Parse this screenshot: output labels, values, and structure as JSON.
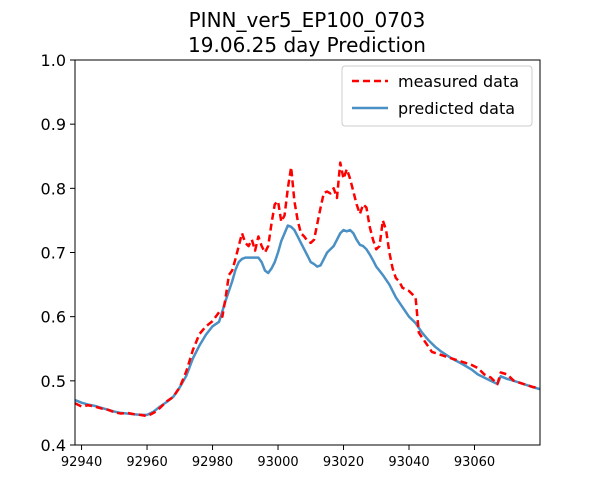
{
  "chart_data": {
    "type": "line",
    "title_line1": "PINN_ver5_EP100_0703",
    "title_line2": "19.06.25 day Prediction",
    "xlabel": "",
    "ylabel": "",
    "xlim": [
      92938,
      93080
    ],
    "ylim": [
      0.4,
      1.0
    ],
    "x_ticks": [
      92940,
      92960,
      92980,
      93000,
      93020,
      93040,
      93060
    ],
    "x_tick_labels": [
      "92940",
      "92960",
      "92980",
      "93000",
      "93020",
      "93040",
      "93060"
    ],
    "y_ticks": [
      0.4,
      0.5,
      0.6,
      0.7,
      0.8,
      0.9,
      1.0
    ],
    "y_tick_labels": [
      "0.4",
      "0.5",
      "0.6",
      "0.7",
      "0.8",
      "0.9",
      "1.0"
    ],
    "grid": false,
    "legend_position": "top-right",
    "series": [
      {
        "name": "measured data",
        "color": "#ff0000",
        "style": "dashed",
        "points": [
          [
            92938,
            0.465
          ],
          [
            92940,
            0.46
          ],
          [
            92942,
            0.462
          ],
          [
            92944,
            0.46
          ],
          [
            92946,
            0.457
          ],
          [
            92948,
            0.455
          ],
          [
            92950,
            0.451
          ],
          [
            92952,
            0.449
          ],
          [
            92954,
            0.45
          ],
          [
            92956,
            0.448
          ],
          [
            92958,
            0.447
          ],
          [
            92960,
            0.445
          ],
          [
            92962,
            0.45
          ],
          [
            92964,
            0.458
          ],
          [
            92966,
            0.468
          ],
          [
            92968,
            0.475
          ],
          [
            92970,
            0.49
          ],
          [
            92972,
            0.515
          ],
          [
            92974,
            0.548
          ],
          [
            92976,
            0.573
          ],
          [
            92978,
            0.585
          ],
          [
            92980,
            0.593
          ],
          [
            92982,
            0.607
          ],
          [
            92983,
            0.6
          ],
          [
            92984,
            0.63
          ],
          [
            92985,
            0.665
          ],
          [
            92986,
            0.672
          ],
          [
            92987,
            0.69
          ],
          [
            92988,
            0.71
          ],
          [
            92989,
            0.73
          ],
          [
            92990,
            0.715
          ],
          [
            92991,
            0.71
          ],
          [
            92992,
            0.72
          ],
          [
            92993,
            0.703
          ],
          [
            92994,
            0.725
          ],
          [
            92995,
            0.71
          ],
          [
            92996,
            0.7
          ],
          [
            92997,
            0.71
          ],
          [
            92998,
            0.745
          ],
          [
            92999,
            0.775
          ],
          [
            93000,
            0.78
          ],
          [
            93001,
            0.748
          ],
          [
            93002,
            0.758
          ],
          [
            93003,
            0.8
          ],
          [
            93004,
            0.833
          ],
          [
            93005,
            0.78
          ],
          [
            93006,
            0.75
          ],
          [
            93007,
            0.73
          ],
          [
            93008,
            0.725
          ],
          [
            93009,
            0.718
          ],
          [
            93010,
            0.715
          ],
          [
            93011,
            0.72
          ],
          [
            93012,
            0.745
          ],
          [
            93013,
            0.77
          ],
          [
            93014,
            0.793
          ],
          [
            93015,
            0.795
          ],
          [
            93016,
            0.792
          ],
          [
            93017,
            0.8
          ],
          [
            93018,
            0.785
          ],
          [
            93019,
            0.84
          ],
          [
            93020,
            0.815
          ],
          [
            93021,
            0.83
          ],
          [
            93022,
            0.815
          ],
          [
            93023,
            0.795
          ],
          [
            93024,
            0.775
          ],
          [
            93025,
            0.76
          ],
          [
            93026,
            0.775
          ],
          [
            93027,
            0.77
          ],
          [
            93028,
            0.74
          ],
          [
            93029,
            0.72
          ],
          [
            93030,
            0.705
          ],
          [
            93031,
            0.71
          ],
          [
            93032,
            0.75
          ],
          [
            93033,
            0.735
          ],
          [
            93034,
            0.7
          ],
          [
            93035,
            0.675
          ],
          [
            93036,
            0.66
          ],
          [
            93037,
            0.655
          ],
          [
            93038,
            0.645
          ],
          [
            93040,
            0.64
          ],
          [
            93042,
            0.63
          ],
          [
            93043,
            0.575
          ],
          [
            93045,
            0.56
          ],
          [
            93047,
            0.545
          ],
          [
            93050,
            0.54
          ],
          [
            93053,
            0.535
          ],
          [
            93056,
            0.53
          ],
          [
            93059,
            0.525
          ],
          [
            93061,
            0.52
          ],
          [
            93063,
            0.51
          ],
          [
            93065,
            0.505
          ],
          [
            93067,
            0.495
          ],
          [
            93068,
            0.513
          ],
          [
            93070,
            0.51
          ],
          [
            93072,
            0.5
          ],
          [
            93075,
            0.495
          ],
          [
            93078,
            0.49
          ],
          [
            93080,
            0.49
          ]
        ]
      },
      {
        "name": "predicted data",
        "color": "#4a90c4",
        "style": "solid",
        "points": [
          [
            92938,
            0.47
          ],
          [
            92940,
            0.466
          ],
          [
            92942,
            0.463
          ],
          [
            92944,
            0.461
          ],
          [
            92946,
            0.458
          ],
          [
            92948,
            0.455
          ],
          [
            92950,
            0.452
          ],
          [
            92952,
            0.45
          ],
          [
            92954,
            0.449
          ],
          [
            92956,
            0.448
          ],
          [
            92958,
            0.447
          ],
          [
            92960,
            0.447
          ],
          [
            92962,
            0.452
          ],
          [
            92964,
            0.46
          ],
          [
            92966,
            0.467
          ],
          [
            92968,
            0.475
          ],
          [
            92970,
            0.49
          ],
          [
            92972,
            0.508
          ],
          [
            92974,
            0.535
          ],
          [
            92976,
            0.555
          ],
          [
            92978,
            0.572
          ],
          [
            92980,
            0.585
          ],
          [
            92982,
            0.592
          ],
          [
            92984,
            0.625
          ],
          [
            92985,
            0.64
          ],
          [
            92986,
            0.655
          ],
          [
            92987,
            0.673
          ],
          [
            92988,
            0.685
          ],
          [
            92989,
            0.69
          ],
          [
            92990,
            0.692
          ],
          [
            92992,
            0.692
          ],
          [
            92994,
            0.692
          ],
          [
            92995,
            0.685
          ],
          [
            92996,
            0.672
          ],
          [
            92997,
            0.668
          ],
          [
            92998,
            0.675
          ],
          [
            92999,
            0.685
          ],
          [
            93000,
            0.7
          ],
          [
            93001,
            0.718
          ],
          [
            93002,
            0.73
          ],
          [
            93003,
            0.742
          ],
          [
            93004,
            0.74
          ],
          [
            93005,
            0.735
          ],
          [
            93006,
            0.725
          ],
          [
            93007,
            0.715
          ],
          [
            93008,
            0.705
          ],
          [
            93009,
            0.695
          ],
          [
            93010,
            0.685
          ],
          [
            93011,
            0.682
          ],
          [
            93012,
            0.678
          ],
          [
            93013,
            0.68
          ],
          [
            93014,
            0.69
          ],
          [
            93015,
            0.7
          ],
          [
            93016,
            0.705
          ],
          [
            93017,
            0.71
          ],
          [
            93018,
            0.72
          ],
          [
            93019,
            0.73
          ],
          [
            93020,
            0.735
          ],
          [
            93021,
            0.733
          ],
          [
            93022,
            0.735
          ],
          [
            93023,
            0.73
          ],
          [
            93024,
            0.72
          ],
          [
            93025,
            0.712
          ],
          [
            93026,
            0.71
          ],
          [
            93027,
            0.705
          ],
          [
            93028,
            0.697
          ],
          [
            93029,
            0.688
          ],
          [
            93030,
            0.678
          ],
          [
            93032,
            0.665
          ],
          [
            93034,
            0.65
          ],
          [
            93036,
            0.63
          ],
          [
            93038,
            0.615
          ],
          [
            93040,
            0.6
          ],
          [
            93042,
            0.59
          ],
          [
            93044,
            0.575
          ],
          [
            93046,
            0.563
          ],
          [
            93048,
            0.553
          ],
          [
            93050,
            0.545
          ],
          [
            93053,
            0.535
          ],
          [
            93056,
            0.527
          ],
          [
            93059,
            0.518
          ],
          [
            93061,
            0.51
          ],
          [
            93063,
            0.505
          ],
          [
            93065,
            0.5
          ],
          [
            93067,
            0.495
          ],
          [
            93068,
            0.507
          ],
          [
            93070,
            0.503
          ],
          [
            93072,
            0.5
          ],
          [
            93075,
            0.495
          ],
          [
            93078,
            0.49
          ],
          [
            93080,
            0.487
          ]
        ]
      }
    ]
  }
}
